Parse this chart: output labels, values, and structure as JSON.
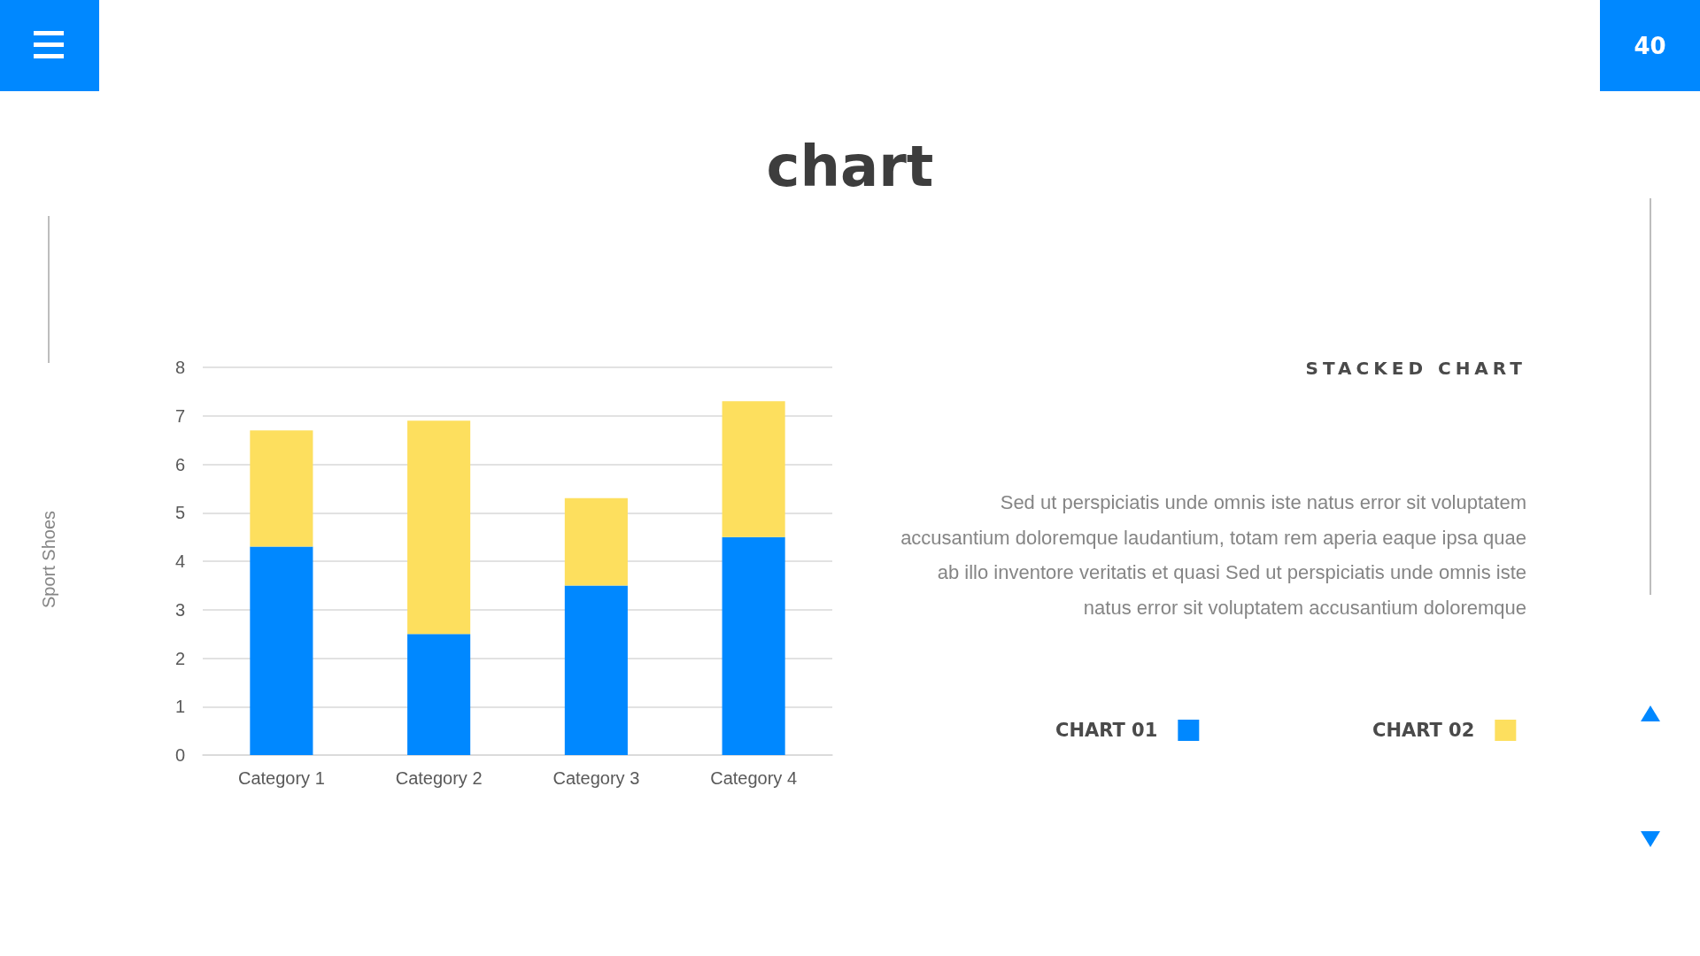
{
  "chart_data": {
    "type": "bar",
    "title": "chart",
    "subtitle": "STACKED CHART",
    "annotations": [
      "Sed ut perspiciatis unde omnis iste natus error sit voluptatem accusantium doloremque laudantium, totam rem aperia eaque ipsa quae ab illo inventore veritatis et quasi Sed ut perspiciatis unde omnis iste natus error sit voluptatem accusantium doloremque",
      "Sport Shoes",
      "40"
    ],
    "categories": [
      "Category 1",
      "Category 2",
      "Category 3",
      "Category 4"
    ],
    "series": [
      {
        "name": "CHART 01",
        "color": "#0088ff",
        "values": [
          4.3,
          2.5,
          3.5,
          4.5
        ]
      },
      {
        "name": "CHART 02",
        "color": "#fddf5e",
        "values": [
          2.4,
          4.4,
          1.8,
          2.8
        ]
      }
    ],
    "stacked": true,
    "ylim": [
      0,
      8
    ],
    "yticks": [
      0,
      1,
      2,
      3,
      4,
      5,
      6,
      7,
      8
    ],
    "grid": "y",
    "legend": "right"
  }
}
